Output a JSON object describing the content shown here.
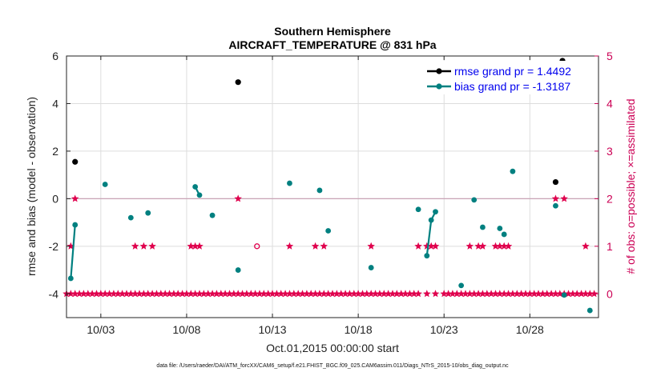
{
  "chart_data": {
    "type": "line",
    "title": "Southern Hemisphere",
    "subtitle": "AIRCRAFT_TEMPERATURE @ 831 hPa",
    "xlabel": "Oct.01,2015 00:00:00 start",
    "ylabel": "rmse and bias (model - observation)",
    "ylabel_right": "# of obs: o=possible; ×=assimilated",
    "footnote": "data file: /Users/raeder/DAI/ATM_forcXX/CAM6_setup/f.e21.FHIST_BGC.f09_025.CAM6assim.011/Diags_NTrS_2015-10/obs_diag_output.nc",
    "xlim": [
      1.0,
      32.0
    ],
    "ylim": [
      -5,
      6
    ],
    "ylim_right": [
      -0.5,
      5
    ],
    "x_ticks": [
      {
        "value": 3,
        "label": "10/03"
      },
      {
        "value": 8,
        "label": "10/08"
      },
      {
        "value": 13,
        "label": "10/13"
      },
      {
        "value": 18,
        "label": "10/18"
      },
      {
        "value": 23,
        "label": "10/23"
      },
      {
        "value": 28,
        "label": "10/28"
      }
    ],
    "y_ticks": [
      {
        "value": 6,
        "label": "6"
      },
      {
        "value": 4,
        "label": "4"
      },
      {
        "value": 2,
        "label": "2"
      },
      {
        "value": 0,
        "label": "0"
      },
      {
        "value": -2,
        "label": "-2"
      },
      {
        "value": -4,
        "label": "-4"
      }
    ],
    "y_ticks_right": [
      {
        "value": 5,
        "label": "5"
      },
      {
        "value": 4,
        "label": "4"
      },
      {
        "value": 3,
        "label": "3"
      },
      {
        "value": 2,
        "label": "2"
      },
      {
        "value": 1,
        "label": "1"
      },
      {
        "value": 0,
        "label": "0"
      }
    ],
    "legend": {
      "position": "top-right",
      "entries": [
        {
          "label": "rmse grand pr = 1.4492",
          "color": "#000000"
        },
        {
          "label": "bias grand pr = -1.3187",
          "color": "#008080"
        }
      ]
    },
    "series": [
      {
        "name": "rmse",
        "color": "#000000",
        "points": [
          [
            1.5,
            1.55
          ],
          [
            11.0,
            4.9
          ],
          [
            29.5,
            0.7
          ],
          [
            29.9,
            5.8
          ]
        ]
      },
      {
        "name": "bias",
        "color": "#008080",
        "segments": [
          [
            [
              1.25,
              -3.35
            ],
            [
              1.5,
              -1.1
            ]
          ],
          [
            [
              8.5,
              0.5
            ],
            [
              8.75,
              0.15
            ]
          ],
          [
            [
              22.0,
              -2.4
            ],
            [
              22.25,
              -0.9
            ],
            [
              22.5,
              -0.55
            ]
          ]
        ],
        "points": [
          [
            3.25,
            0.6
          ],
          [
            4.75,
            -0.8
          ],
          [
            5.75,
            -0.6
          ],
          [
            9.5,
            -0.7
          ],
          [
            11.0,
            -3.0
          ],
          [
            14.0,
            0.65
          ],
          [
            15.75,
            0.35
          ],
          [
            16.25,
            -1.35
          ],
          [
            18.75,
            -2.9
          ],
          [
            21.5,
            -0.45
          ],
          [
            24.0,
            -3.65
          ],
          [
            24.75,
            -0.05
          ],
          [
            25.25,
            -1.2
          ],
          [
            26.25,
            -1.25
          ],
          [
            26.5,
            -1.5
          ],
          [
            27.0,
            1.15
          ],
          [
            29.5,
            -0.3
          ],
          [
            30.0,
            -4.05
          ],
          [
            31.5,
            -4.7
          ]
        ]
      },
      {
        "name": "obs_assimilated",
        "axis": "right",
        "color": "#e0004d",
        "marker": "star",
        "points": [
          [
            1.25,
            1
          ],
          [
            1.5,
            2
          ],
          [
            5.0,
            1
          ],
          [
            5.5,
            1
          ],
          [
            6.0,
            1
          ],
          [
            8.25,
            1
          ],
          [
            8.5,
            1
          ],
          [
            8.75,
            1
          ],
          [
            11.0,
            2
          ],
          [
            14.0,
            1
          ],
          [
            15.5,
            1
          ],
          [
            16.0,
            1
          ],
          [
            18.75,
            1
          ],
          [
            21.5,
            1
          ],
          [
            22.0,
            1
          ],
          [
            22.25,
            1
          ],
          [
            22.5,
            1
          ],
          [
            24.5,
            1
          ],
          [
            25.0,
            1
          ],
          [
            25.25,
            1
          ],
          [
            26.0,
            1
          ],
          [
            26.25,
            1
          ],
          [
            26.5,
            1
          ],
          [
            26.75,
            1
          ],
          [
            29.5,
            2
          ],
          [
            30.0,
            2
          ],
          [
            31.25,
            1
          ],
          [
            1.0,
            0
          ],
          [
            1.25,
            0
          ],
          [
            1.5,
            0
          ],
          [
            1.75,
            0
          ],
          [
            2.0,
            0
          ],
          [
            2.25,
            0
          ],
          [
            2.5,
            0
          ],
          [
            2.75,
            0
          ],
          [
            3.0,
            0
          ],
          [
            3.25,
            0
          ],
          [
            3.5,
            0
          ],
          [
            3.75,
            0
          ],
          [
            4.0,
            0
          ],
          [
            4.25,
            0
          ],
          [
            4.5,
            0
          ],
          [
            4.75,
            0
          ],
          [
            5.0,
            0
          ],
          [
            5.25,
            0
          ],
          [
            5.5,
            0
          ],
          [
            5.75,
            0
          ],
          [
            6.0,
            0
          ],
          [
            6.25,
            0
          ],
          [
            6.5,
            0
          ],
          [
            6.75,
            0
          ],
          [
            7.0,
            0
          ],
          [
            7.25,
            0
          ],
          [
            7.5,
            0
          ],
          [
            7.75,
            0
          ],
          [
            8.0,
            0
          ],
          [
            8.25,
            0
          ],
          [
            8.5,
            0
          ],
          [
            8.75,
            0
          ],
          [
            9.0,
            0
          ],
          [
            9.25,
            0
          ],
          [
            9.5,
            0
          ],
          [
            9.75,
            0
          ],
          [
            10.0,
            0
          ],
          [
            10.25,
            0
          ],
          [
            10.5,
            0
          ],
          [
            10.75,
            0
          ],
          [
            11.0,
            0
          ],
          [
            11.25,
            0
          ],
          [
            11.5,
            0
          ],
          [
            11.75,
            0
          ],
          [
            12.0,
            0
          ],
          [
            12.25,
            0
          ],
          [
            12.5,
            0
          ],
          [
            12.75,
            0
          ],
          [
            13.0,
            0
          ],
          [
            13.25,
            0
          ],
          [
            13.5,
            0
          ],
          [
            13.75,
            0
          ],
          [
            14.0,
            0
          ],
          [
            14.25,
            0
          ],
          [
            14.5,
            0
          ],
          [
            14.75,
            0
          ],
          [
            15.0,
            0
          ],
          [
            15.25,
            0
          ],
          [
            15.5,
            0
          ],
          [
            15.75,
            0
          ],
          [
            16.0,
            0
          ],
          [
            16.25,
            0
          ],
          [
            16.5,
            0
          ],
          [
            16.75,
            0
          ],
          [
            17.0,
            0
          ],
          [
            17.25,
            0
          ],
          [
            17.5,
            0
          ],
          [
            17.75,
            0
          ],
          [
            18.0,
            0
          ],
          [
            18.25,
            0
          ],
          [
            18.5,
            0
          ],
          [
            18.75,
            0
          ],
          [
            19.0,
            0
          ],
          [
            19.25,
            0
          ],
          [
            19.5,
            0
          ],
          [
            19.75,
            0
          ],
          [
            20.0,
            0
          ],
          [
            20.25,
            0
          ],
          [
            20.5,
            0
          ],
          [
            20.75,
            0
          ],
          [
            21.0,
            0
          ],
          [
            21.25,
            0
          ],
          [
            21.5,
            0
          ],
          [
            22.0,
            0
          ],
          [
            22.5,
            0
          ],
          [
            23.0,
            0
          ],
          [
            23.25,
            0
          ],
          [
            23.5,
            0
          ],
          [
            23.75,
            0
          ],
          [
            24.0,
            0
          ],
          [
            24.25,
            0
          ],
          [
            24.5,
            0
          ],
          [
            24.75,
            0
          ],
          [
            25.0,
            0
          ],
          [
            25.25,
            0
          ],
          [
            25.5,
            0
          ],
          [
            25.75,
            0
          ],
          [
            26.0,
            0
          ],
          [
            26.25,
            0
          ],
          [
            26.5,
            0
          ],
          [
            26.75,
            0
          ],
          [
            27.0,
            0
          ],
          [
            27.25,
            0
          ],
          [
            27.5,
            0
          ],
          [
            27.75,
            0
          ],
          [
            28.0,
            0
          ],
          [
            28.25,
            0
          ],
          [
            28.5,
            0
          ],
          [
            28.75,
            0
          ],
          [
            29.0,
            0
          ],
          [
            29.25,
            0
          ],
          [
            29.5,
            0
          ],
          [
            29.75,
            0
          ],
          [
            30.0,
            0
          ],
          [
            30.25,
            0
          ],
          [
            30.5,
            0
          ],
          [
            30.75,
            0
          ],
          [
            31.0,
            0
          ],
          [
            31.25,
            0
          ],
          [
            31.5,
            0
          ],
          [
            31.75,
            0
          ]
        ]
      },
      {
        "name": "obs_possible",
        "axis": "right",
        "color": "#e0004d",
        "marker": "circle-open",
        "points": [
          [
            12.1,
            1
          ]
        ]
      }
    ]
  }
}
